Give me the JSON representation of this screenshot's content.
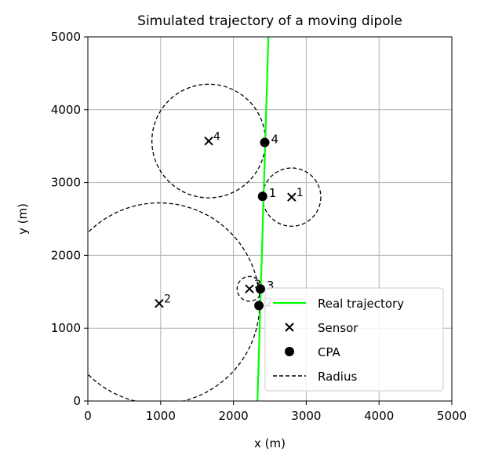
{
  "chart_data": {
    "type": "scatter",
    "title": "Simulated trajectory of a moving dipole",
    "xlabel": "x (m)",
    "ylabel": "y (m)",
    "xlim": [
      0,
      5000
    ],
    "ylim": [
      0,
      5000
    ],
    "xticks": [
      0,
      1000,
      2000,
      3000,
      4000,
      5000
    ],
    "yticks": [
      0,
      1000,
      2000,
      3000,
      4000,
      5000
    ],
    "xtick_labels": [
      "0",
      "1000",
      "2000",
      "3000",
      "4000",
      "5000"
    ],
    "ytick_labels": [
      "0",
      "1000",
      "2000",
      "3000",
      "4000",
      "5000"
    ],
    "grid": true,
    "legend_position": "lower-right",
    "trajectory": {
      "name": "Real trajectory",
      "color": "#00ff00",
      "x": [
        2330,
        2480
      ],
      "y": [
        0,
        5000
      ]
    },
    "sensors": {
      "name": "Sensor",
      "points": [
        {
          "label": "1",
          "x": 2800,
          "y": 2800
        },
        {
          "label": "2",
          "x": 980,
          "y": 1340
        },
        {
          "label": "3",
          "x": 2220,
          "y": 1540
        },
        {
          "label": "4",
          "x": 1660,
          "y": 3570
        }
      ]
    },
    "cpa": {
      "name": "CPA",
      "points": [
        {
          "label": "1",
          "x": 2400,
          "y": 2810
        },
        {
          "label": "2",
          "x": 2350,
          "y": 1310
        },
        {
          "label": "3",
          "x": 2370,
          "y": 1540
        },
        {
          "label": "4",
          "x": 2430,
          "y": 3550
        }
      ]
    },
    "radius": {
      "name": "Radius",
      "circles": [
        {
          "sensor": "1",
          "r": 400
        },
        {
          "sensor": "2",
          "r": 1380
        },
        {
          "sensor": "3",
          "r": 170
        },
        {
          "sensor": "4",
          "r": 780
        }
      ]
    },
    "legend": [
      "Real trajectory",
      "Sensor",
      "CPA",
      "Radius"
    ]
  }
}
